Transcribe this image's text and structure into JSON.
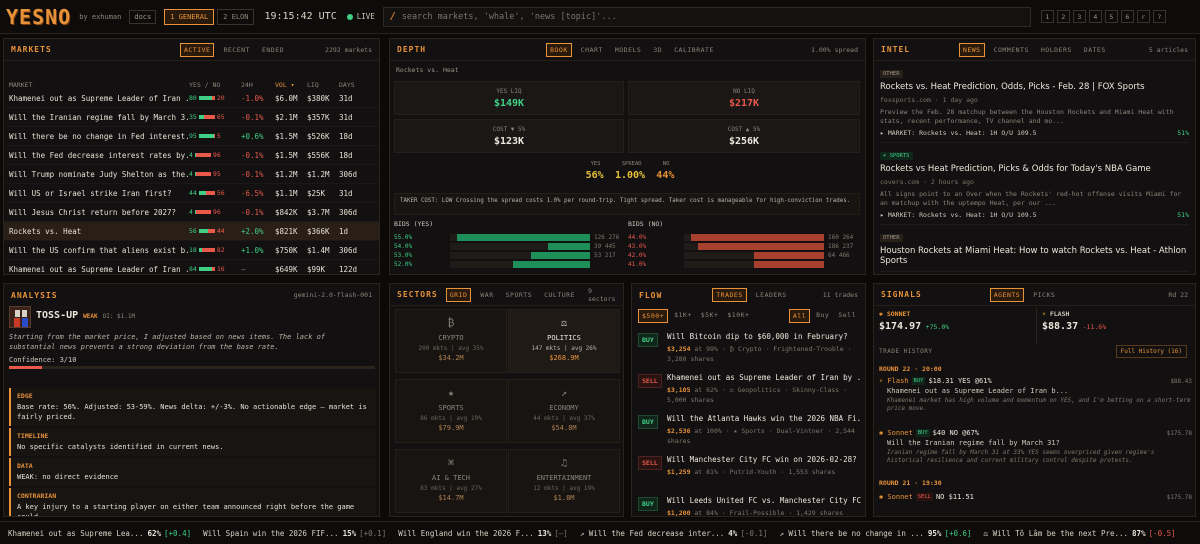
{
  "topbar": {
    "logo": "YESNO",
    "byline": "by exhuman",
    "docs": "docs",
    "tab1": "1 GENERAL",
    "tab2": "2 ELON",
    "clock": "19:15:42 UTC",
    "live": "LIVE",
    "search_placeholder": "search markets, 'whale', 'news [topic]'...",
    "hotkeys": [
      "1",
      "2",
      "3",
      "4",
      "5",
      "6",
      "r",
      "?"
    ]
  },
  "markets": {
    "title": "MARKETS",
    "tabs": [
      "ACTIVE",
      "RECENT",
      "ENDED"
    ],
    "count": "2292 markets",
    "cols": [
      "MARKET",
      "YES / NO",
      "24H",
      "VOL ▾",
      "LIQ",
      "DAYS"
    ],
    "rows": [
      {
        "name": "Khamenei out as Supreme Leader of Iran ...",
        "yes": "80",
        "no": "20",
        "ch": "-1.0%",
        "vol": "$6.0M",
        "liq": "$380K",
        "days": "31d",
        "yp": 80
      },
      {
        "name": "Will the Iranian regime fall by March 3...",
        "yes": "35",
        "no": "65",
        "ch": "-0.1%",
        "vol": "$2.1M",
        "liq": "$357K",
        "days": "31d",
        "yp": 35
      },
      {
        "name": "Will there be no change in Fed interest...",
        "yes": "95",
        "no": "5",
        "ch": "+0.6%",
        "vol": "$1.5M",
        "liq": "$526K",
        "days": "18d",
        "yp": 95
      },
      {
        "name": "Will the Fed decrease interest rates by...",
        "yes": "4",
        "no": "96",
        "ch": "-0.1%",
        "vol": "$1.5M",
        "liq": "$556K",
        "days": "18d",
        "yp": 4
      },
      {
        "name": "Will Trump nominate Judy Shelton as the...",
        "yes": "4",
        "no": "95",
        "ch": "-0.1%",
        "vol": "$1.2M",
        "liq": "$1.2M",
        "days": "306d",
        "yp": 4
      },
      {
        "name": "Will US or Israel strike Iran first?",
        "yes": "44",
        "no": "56",
        "ch": "-6.5%",
        "vol": "$1.1M",
        "liq": "$25K",
        "days": "31d",
        "yp": 44
      },
      {
        "name": "Will Jesus Christ return before 2027?",
        "yes": "4",
        "no": "96",
        "ch": "-0.1%",
        "vol": "$842K",
        "liq": "$3.7M",
        "days": "306d",
        "yp": 4
      },
      {
        "name": "Rockets vs. Heat",
        "yes": "56",
        "no": "44",
        "ch": "+2.0%",
        "vol": "$821K",
        "liq": "$366K",
        "days": "1d",
        "yp": 56
      },
      {
        "name": "Will the US confirm that aliens exist b...",
        "yes": "18",
        "no": "82",
        "ch": "+1.0%",
        "vol": "$750K",
        "liq": "$1.4M",
        "days": "306d",
        "yp": 18
      },
      {
        "name": "Khamenei out as Supreme Leader of Iran ...",
        "yes": "84",
        "no": "16",
        "ch": "—",
        "vol": "$649K",
        "liq": "$99K",
        "days": "122d",
        "yp": 84
      }
    ]
  },
  "depth": {
    "title": "DEPTH",
    "tabs": [
      "BOOK",
      "CHART",
      "MODELS",
      "3D",
      "CALIBRATE"
    ],
    "spread": "1.00% spread",
    "market": "Rockets vs. Heat",
    "yes_liq_label": "YES LIQ",
    "yes_liq": "$149K",
    "no_liq_label": "NO LIQ",
    "no_liq": "$217K",
    "cost_down_label": "COST ▼ 5%",
    "cost_down": "$123K",
    "cost_up_label": "COST ▲ 5%",
    "cost_up": "$256K",
    "yes_l": "YES",
    "spread_l": "SPREAD",
    "no_l": "NO",
    "yes_v": "56%",
    "spread_v": "1.00%",
    "no_v": "44%",
    "taker": "TAKER COST: LOW Crossing the spread costs 1.0% per round-trip. Tight spread. Taker cost is manageable for high-conviction trades.",
    "bids_yes": "BIDS (YES)",
    "bids_no": "BIDS (NO)",
    "yes_rows": [
      {
        "p": "55.0%",
        "q": "126 276",
        "f": 0.95
      },
      {
        "p": "54.0%",
        "q": "39 445",
        "f": 0.3
      },
      {
        "p": "53.0%",
        "q": "53 217",
        "f": 0.42
      },
      {
        "p": "52.0%",
        "q": "",
        "f": 0.55
      }
    ],
    "no_rows": [
      {
        "p": "44.0%",
        "q": "160 264",
        "f": 0.95
      },
      {
        "p": "43.0%",
        "q": "186 237",
        "f": 0.9
      },
      {
        "p": "42.0%",
        "q": "64 466",
        "f": 0.5
      },
      {
        "p": "41.0%",
        "q": "",
        "f": 0.5
      }
    ]
  },
  "intel": {
    "title": "INTEL",
    "tabs": [
      "NEWS",
      "COMMENTS",
      "HOLDERS",
      "DATES"
    ],
    "count": "5 articles",
    "items": [
      {
        "tag": "OTHER",
        "title": "Rockets vs. Heat Prediction, Odds, Picks - Feb. 28 | FOX Sports",
        "src": "foxsports.com · 1 day ago",
        "desc": "Preview the Feb. 28 matchup between the Houston Rockets and Miami Heat with stats, recent performance, TV channel and mo...",
        "mk": "▸ MARKET: Rockets vs. Heat: 1H O/U 109.5",
        "pct": "51%"
      },
      {
        "tag": "+ SPORTS",
        "title": "Rockets vs Heat Prediction, Picks & Odds for Today's NBA Game",
        "src": "covers.com · 2 hours ago",
        "desc": "All signs point to an Over when the Rockets' red-hot offense visits Miami for an matchup with the uptempo Heat, per our ...",
        "mk": "▸ MARKET: Rockets vs. Heat: 1H O/U 109.5",
        "pct": "51%"
      },
      {
        "tag": "OTHER",
        "title": "Houston Rockets at Miami Heat: How to watch Rockets vs. Heat - Athlon Sports",
        "src": "",
        "desc": "",
        "mk": "",
        "pct": ""
      }
    ]
  },
  "analysis": {
    "title": "ANALYSIS",
    "model": "gemini-2.0-flash-001",
    "verdict": "TOSS-UP",
    "weak": "WEAK",
    "oi": "OI: $1.1M",
    "summary": "Starting from the market price, I adjusted based on news items. The lack of substantial news prevents a strong deviation from the base rate.",
    "confidence": "Confidence: 3/10",
    "confidence_frac": 0.3,
    "sections": [
      {
        "h": "EDGE",
        "b": "Base rate: 56%. Adjusted: 53-59%. News delta: +/-3%. No actionable edge — market is fairly priced."
      },
      {
        "h": "TIMELINE",
        "b": "No specific catalysts identified in current news."
      },
      {
        "h": "DATA",
        "b": "WEAK: no direct evidence"
      },
      {
        "h": "CONTRARIAN",
        "b": "A key injury to a starting player on either team announced right before the game could"
      }
    ]
  },
  "sectors": {
    "title": "SECTORS",
    "tabs": [
      "GRID",
      "WAR",
      "SPORTS",
      "CULTURE"
    ],
    "count": "9 sectors",
    "cells": [
      {
        "icon": "₿",
        "name": "CRYPTO",
        "stats": "200 mkts | avg 35%",
        "vol": "$34.2M",
        "active": false
      },
      {
        "icon": "⚖",
        "name": "POLITICS",
        "stats": "147 mkts | avg 26%",
        "vol": "$268.9M",
        "active": true
      },
      {
        "icon": "★",
        "name": "SPORTS",
        "stats": "86 mkts | avg 19%",
        "vol": "$79.9M",
        "active": false
      },
      {
        "icon": "↗",
        "name": "ECONOMY",
        "stats": "44 mkts | avg 37%",
        "vol": "$54.8M",
        "active": false
      },
      {
        "icon": "⌘",
        "name": "AI & TECH",
        "stats": "83 mkts | avg 27%",
        "vol": "$14.7M",
        "active": false
      },
      {
        "icon": "♫",
        "name": "ENTERTAINMENT",
        "stats": "12 mkts | avg 19%",
        "vol": "$1.8M",
        "active": false
      }
    ]
  },
  "flow": {
    "title": "FLOW",
    "tabs": [
      "TRADES",
      "LEADERS"
    ],
    "count": "11 trades",
    "filters": [
      "$500+",
      "$1K+",
      "$5K+",
      "$10K+"
    ],
    "sides": [
      "All",
      "Buy",
      "Sell"
    ],
    "trades": [
      {
        "side": "BUY",
        "title": "Will Bitcoin dip to $60,000 in February?",
        "amt": "$3,254",
        "detail": " at 99% · ₿ Crypto · Frightened-Trouble · 3,280 shares"
      },
      {
        "side": "SELL",
        "title": "Khamenei out as Supreme Leader of Iran by ...",
        "amt": "$3,105",
        "detail": " at 62% · ⚖ Geopolitics · Skinny-Class · 5,000 shares"
      },
      {
        "side": "BUY",
        "title": "Will the Atlanta Hawks win the 2026 NBA Fi...",
        "amt": "$2,536",
        "detail": " at 100% · ★ Sports · Dual-Vintner · 2,544 shares"
      },
      {
        "side": "SELL",
        "title": "Will Manchester City FC win on 2026-02-28?",
        "amt": "$1,259",
        "detail": " at 81% · Putrid-Youth · 1,553 shares"
      },
      {
        "side": "BUY",
        "title": "Will Leeds United FC vs. Manchester City FC ...",
        "amt": "$1,200",
        "detail": " at 84% · Frail-Possible · 1,429 shares"
      }
    ]
  },
  "signals": {
    "title": "SIGNALS",
    "tabs": [
      "AGENTS",
      "PICKS"
    ],
    "round": "Rd 22",
    "sonnet_name": "SONNET",
    "sonnet_val": "$174.97",
    "sonnet_ch": "+75.0%",
    "flash_name": "FLASH",
    "flash_val": "$88.37",
    "flash_ch": "-11.6%",
    "history_label": "TRADE HISTORY",
    "full_history": "Full History (16)",
    "round1": "ROUND 22 · 20:00",
    "trades": [
      {
        "agent": "⚡ Flash",
        "side": "BUY",
        "desc": "$18.31 YES @61%",
        "amt": "$88.43",
        "mk": "Khamenei out as Supreme Leader of Iran b...",
        "note": "Khamenei market has high volume and momentum on YES, and I'm betting on a short-term price move."
      },
      {
        "agent": "✱ Sonnet",
        "side": "BUY",
        "desc": "$40 NO @67%",
        "amt": "$175.78",
        "mk": "Will the Iranian regime fall by March 31?",
        "note": "Iranian regime fall by March 31 at 33% YES seems overpriced given regime's historical resilience and current military control despite protests."
      }
    ],
    "round2": "ROUND 21 · 19:30",
    "trade3": {
      "agent": "✱ Sonnet",
      "side": "SELL",
      "desc": "NO $11.51",
      "amt": "$175.78"
    }
  },
  "ticker": [
    {
      "t": "Khamenei out as Supreme Lea...",
      "p": "62%",
      "d": "[+0.4]",
      "c": "green"
    },
    {
      "t": "Will Spain win the 2026 FIF...",
      "p": "15%",
      "d": "[+0.1]",
      "c": "dim"
    },
    {
      "t": "Will England win the 2026 F...",
      "p": "13%",
      "d": "[—]",
      "c": "dim"
    },
    {
      "t": "↗ Will the Fed decrease inter...",
      "p": "4%",
      "d": "[-0.1]",
      "c": "dim"
    },
    {
      "t": "↗ Will there be no change in ...",
      "p": "95%",
      "d": "[+0.6]",
      "c": "green"
    },
    {
      "t": "⚖ Will Tô Lâm be the next Pre...",
      "p": "87%",
      "d": "[-0.5]",
      "c": "red"
    }
  ],
  "colors": {
    "accent": "#e8923a",
    "green": "#3fcf85",
    "red": "#e8594a"
  }
}
